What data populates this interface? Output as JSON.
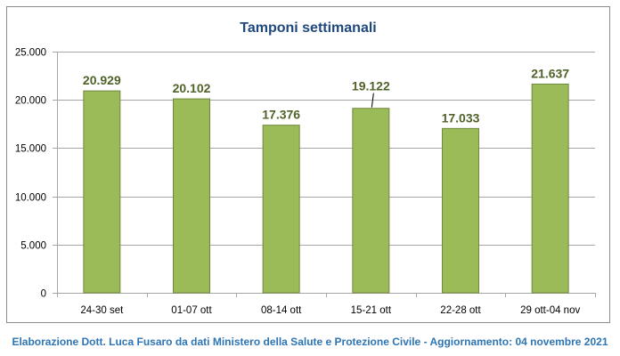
{
  "chart_data": {
    "type": "bar",
    "title": "Tamponi settimanali",
    "categories": [
      "24-30 set",
      "01-07 ott",
      "08-14 ott",
      "15-21 ott",
      "22-28 ott",
      "29 ott-04 nov"
    ],
    "values": [
      20929,
      20102,
      17376,
      19122,
      17033,
      21637
    ],
    "value_labels": [
      "20.929",
      "20.102",
      "17.376",
      "19.122",
      "17.033",
      "21.637"
    ],
    "ylim": [
      0,
      25000
    ],
    "yticks": [
      0,
      5000,
      10000,
      15000,
      20000,
      25000
    ],
    "ytick_labels": [
      "0",
      "5.000",
      "10.000",
      "15.000",
      "20.000",
      "25.000"
    ],
    "xlabel": "",
    "ylabel": "",
    "grid": "horizontal",
    "legend": "none",
    "colors": {
      "bar_fill": "#9bbb59",
      "bar_stroke": "#71893f",
      "value_label": "#4f6228",
      "title": "#1f497d",
      "gridline": "#a6a6a6",
      "axis_text": "#000000"
    }
  },
  "footer": {
    "credit": "Elaborazione Dott. Luca Fusaro da dati Ministero della Salute e Protezione Civile - Aggiornamento: 04 novembre 2021",
    "color": "#2e75b6"
  }
}
